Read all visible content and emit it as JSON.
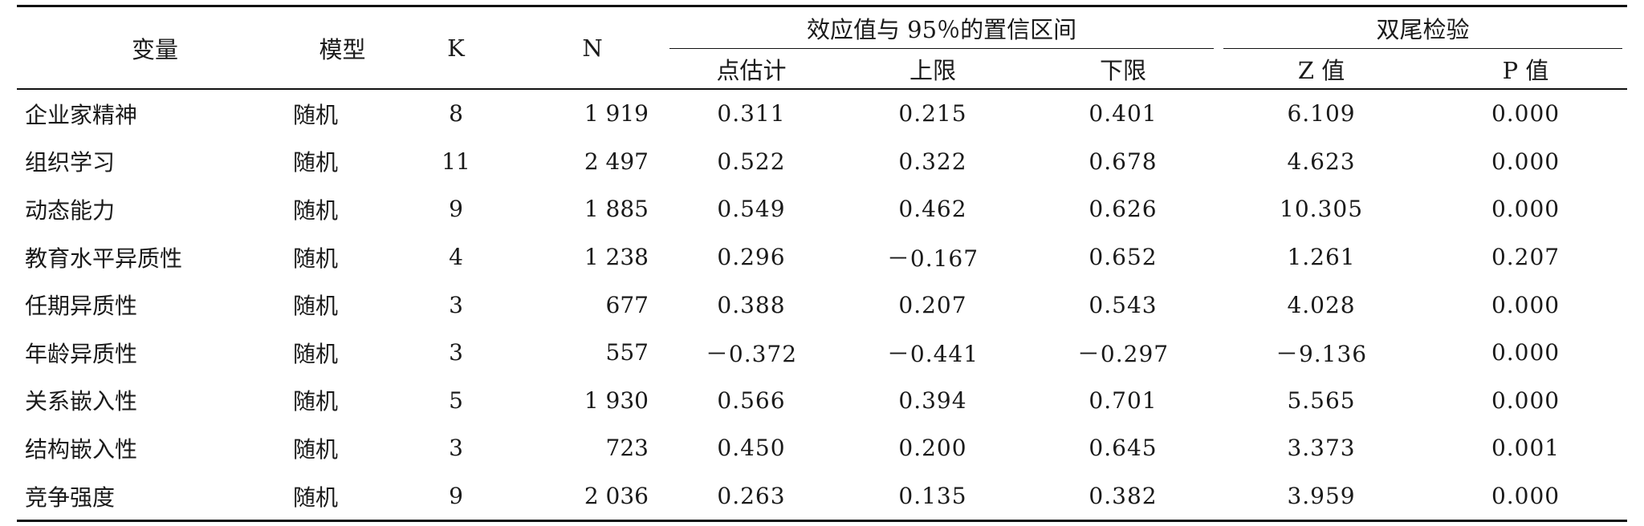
{
  "headers": {
    "variable": "变量",
    "model": "模型",
    "k": "K",
    "n": "N",
    "effect_group": "效应值与 95％的置信区间",
    "test_group": "双尾检验",
    "point_estimate": "点估计",
    "upper": "上限",
    "lower": "下限",
    "z": "Z 值",
    "p": "P 值"
  },
  "rows": [
    {
      "variable": "企业家精神",
      "model": "随机",
      "k": "8",
      "n": "1 919",
      "point_estimate": "0.311",
      "upper": "0.215",
      "lower": "0.401",
      "z": "6.109",
      "p": "0.000"
    },
    {
      "variable": "组织学习",
      "model": "随机",
      "k": "11",
      "n": "2 497",
      "point_estimate": "0.522",
      "upper": "0.322",
      "lower": "0.678",
      "z": "4.623",
      "p": "0.000"
    },
    {
      "variable": "动态能力",
      "model": "随机",
      "k": "9",
      "n": "1 885",
      "point_estimate": "0.549",
      "upper": "0.462",
      "lower": "0.626",
      "z": "10.305",
      "p": "0.000"
    },
    {
      "variable": "教育水平异质性",
      "model": "随机",
      "k": "4",
      "n": "1 238",
      "point_estimate": "0.296",
      "upper": "－0.167",
      "lower": "0.652",
      "z": "1.261",
      "p": "0.207"
    },
    {
      "variable": "任期异质性",
      "model": "随机",
      "k": "3",
      "n": "677",
      "point_estimate": "0.388",
      "upper": "0.207",
      "lower": "0.543",
      "z": "4.028",
      "p": "0.000"
    },
    {
      "variable": "年龄异质性",
      "model": "随机",
      "k": "3",
      "n": "557",
      "point_estimate": "－0.372",
      "upper": "－0.441",
      "lower": "－0.297",
      "z": "－9.136",
      "p": "0.000"
    },
    {
      "variable": "关系嵌入性",
      "model": "随机",
      "k": "5",
      "n": "1 930",
      "point_estimate": "0.566",
      "upper": "0.394",
      "lower": "0.701",
      "z": "5.565",
      "p": "0.000"
    },
    {
      "variable": "结构嵌入性",
      "model": "随机",
      "k": "3",
      "n": "723",
      "point_estimate": "0.450",
      "upper": "0.200",
      "lower": "0.645",
      "z": "3.373",
      "p": "0.001"
    },
    {
      "variable": "竞争强度",
      "model": "随机",
      "k": "9",
      "n": "2 036",
      "point_estimate": "0.263",
      "upper": "0.135",
      "lower": "0.382",
      "z": "3.959",
      "p": "0.000"
    }
  ]
}
